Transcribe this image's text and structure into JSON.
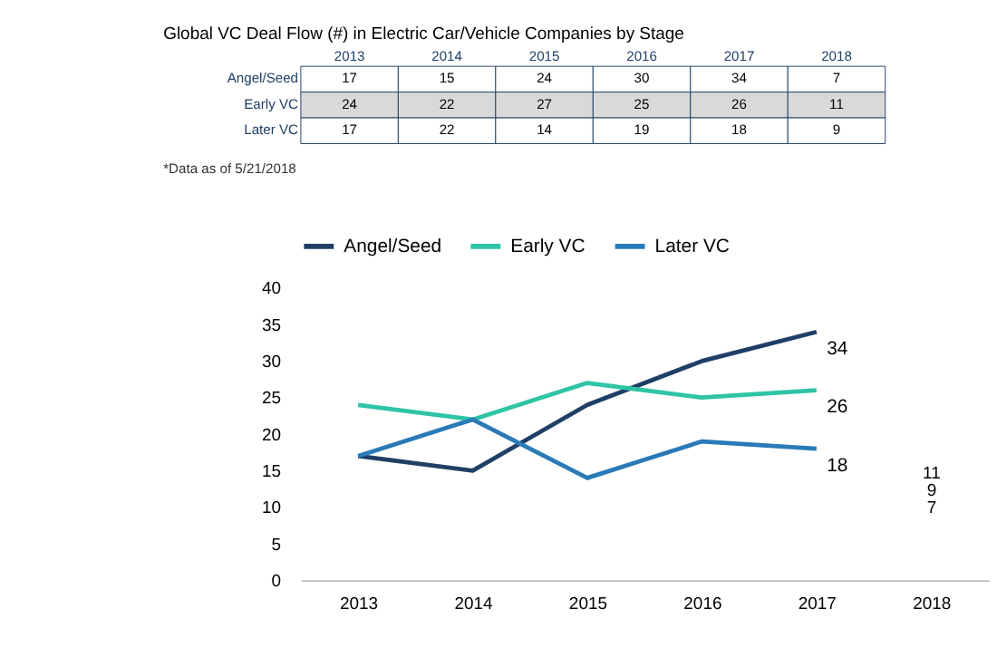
{
  "chart_data": [
    {
      "type": "heatmap",
      "title": "Global VC Deal Flow (#) in Electric Car/Vehicle Companies by Stage",
      "categories": [
        "2013",
        "2014",
        "2015",
        "2016",
        "2017",
        "2018"
      ],
      "y_categories": [
        "Angel/Seed",
        "Early VC",
        "Later VC"
      ],
      "cells": [
        [
          17,
          15,
          24,
          30,
          34,
          7
        ],
        [
          24,
          22,
          27,
          25,
          26,
          11
        ],
        [
          17,
          22,
          14,
          19,
          18,
          9
        ]
      ],
      "annotations": [
        "*Data as of 5/21/2018"
      ],
      "data_labels": true
    },
    {
      "type": "line",
      "categories": [
        "2013",
        "2014",
        "2015",
        "2016",
        "2017",
        "2018"
      ],
      "series": [
        {
          "name": "Angel/Seed",
          "color": "#1f3f66",
          "values": [
            17,
            15,
            24,
            30,
            34,
            null
          ],
          "value_labels": [
            null,
            null,
            null,
            null,
            "34",
            null
          ]
        },
        {
          "name": "Early VC",
          "color": "#2ec4a5",
          "values": [
            24,
            22,
            27,
            25,
            26,
            null
          ],
          "value_labels": [
            null,
            null,
            null,
            null,
            "26",
            null
          ]
        },
        {
          "name": "Later VC",
          "color": "#2a7ab8",
          "values": [
            17,
            22,
            14,
            19,
            18,
            null
          ],
          "value_labels": [
            null,
            null,
            null,
            null,
            "18",
            null
          ]
        }
      ],
      "ylim": [
        0,
        40
      ],
      "yticks": [
        0,
        5,
        10,
        15,
        20,
        25,
        30,
        35,
        40
      ],
      "annotations": [
        "11",
        "9",
        "7"
      ],
      "grid": false,
      "legend": "top",
      "marker": "none",
      "line_style": "solid"
    }
  ]
}
